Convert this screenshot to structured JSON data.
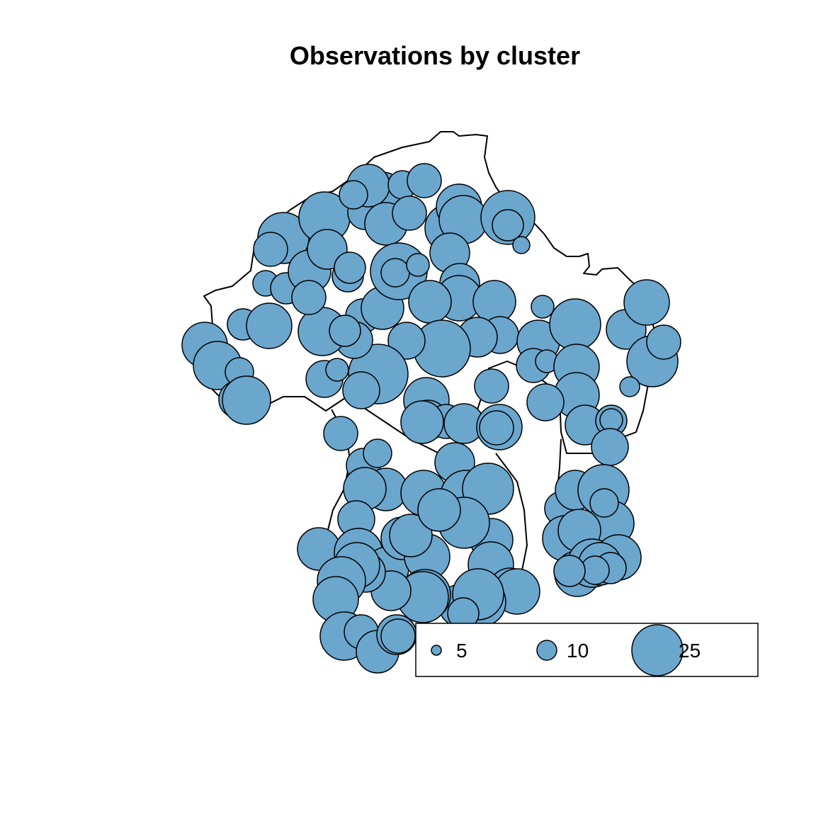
{
  "title": "Observations by cluster",
  "colors": {
    "bubble_fill": "#6BA6CD",
    "bubble_stroke": "#000000",
    "boundary": "#000000",
    "background": "#ffffff"
  },
  "legend": {
    "position": "bottom-right",
    "entries": [
      {
        "label": "5",
        "value": 5
      },
      {
        "label": "10",
        "value": 10
      },
      {
        "label": "25",
        "value": 25
      }
    ]
  },
  "chart_data": {
    "type": "proportional-symbol-map",
    "title": "Observations by cluster",
    "size_variable": "observations per cluster",
    "legend_values": [
      5,
      10,
      25
    ]
  }
}
